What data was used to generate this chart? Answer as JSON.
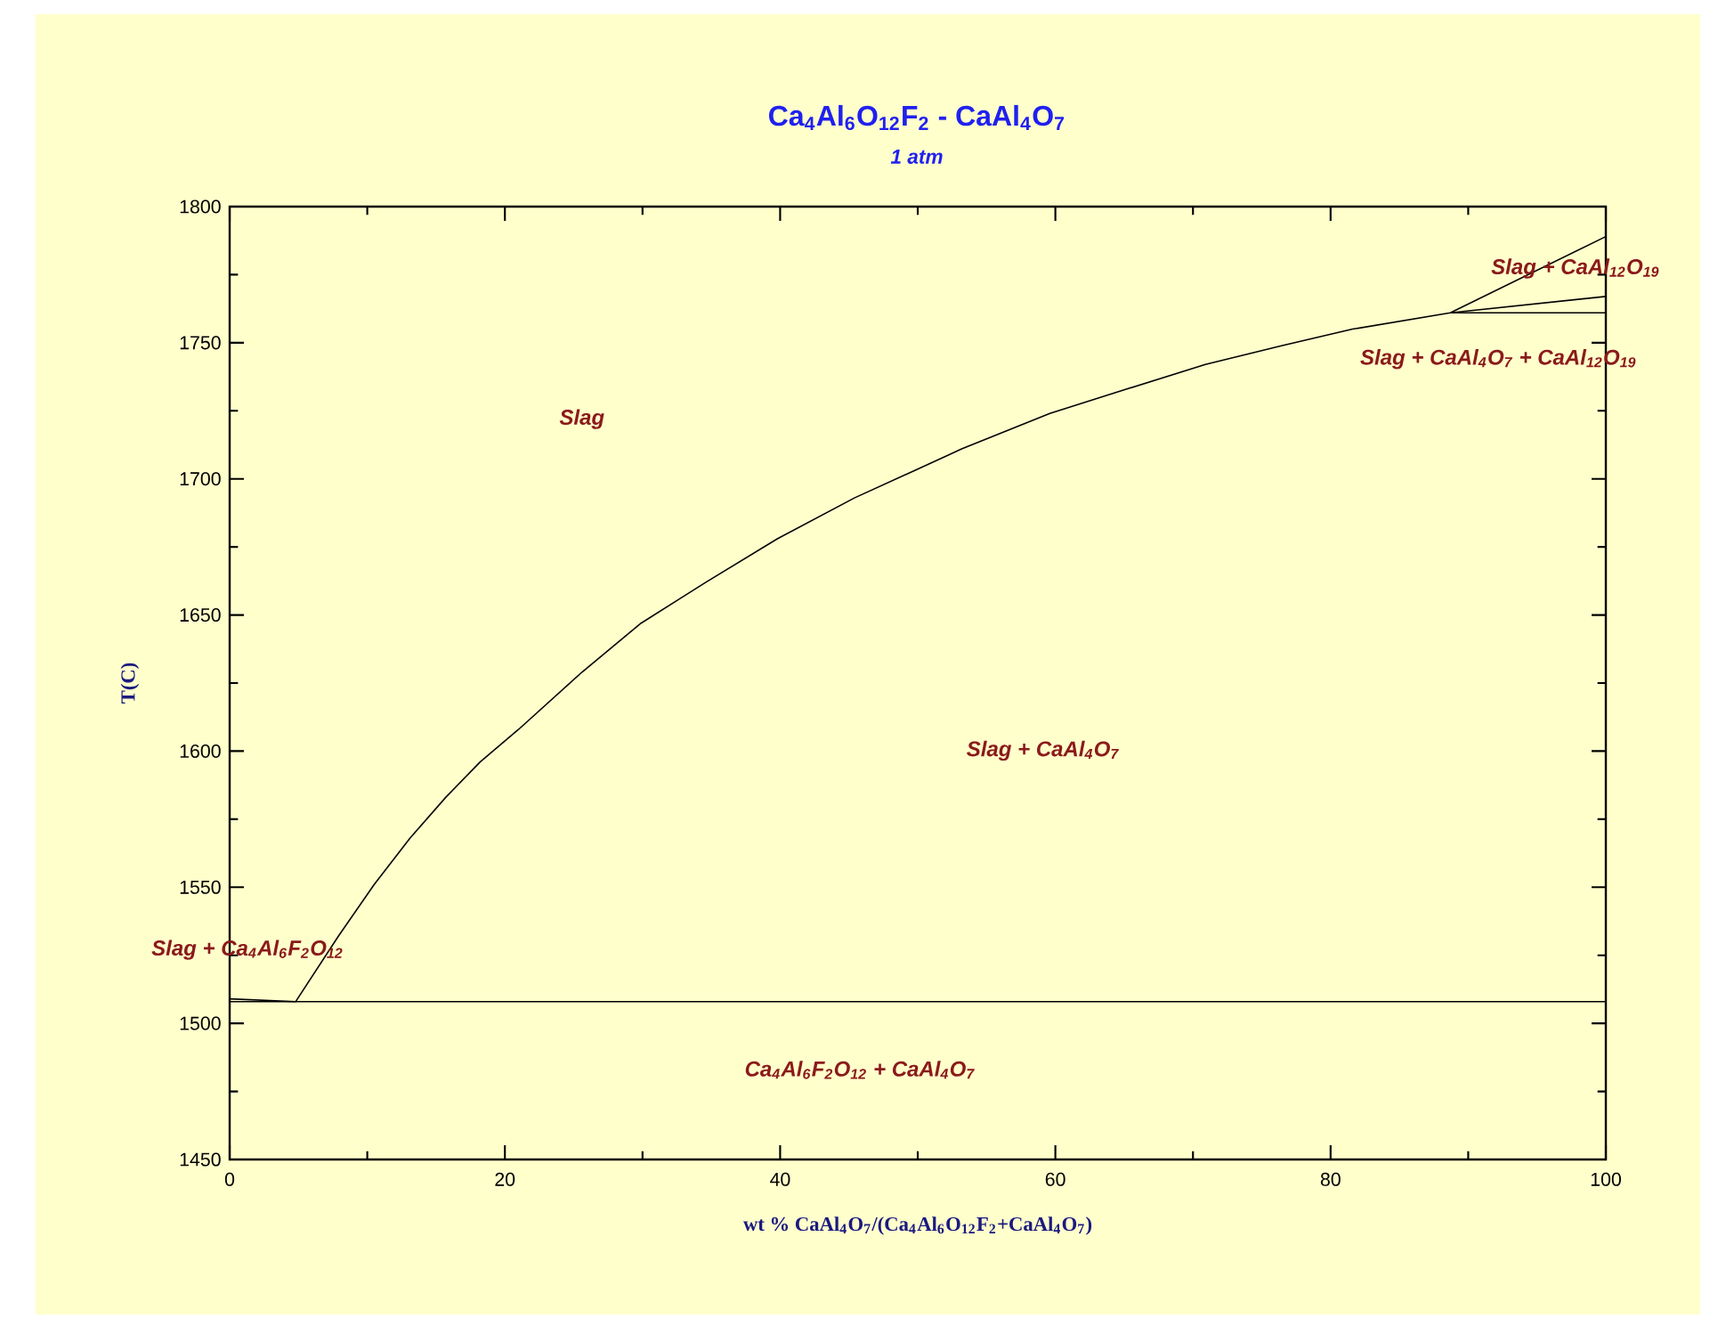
{
  "chart_data": {
    "type": "line",
    "title": "Ca$_{4}$Al$_{6}$O$_{12}$F$_{2}$ - CaAl$_{4}$O$_{7}$",
    "subtitle": "1 atm",
    "xlabel": "wt % CaAl$_{4}$O$_{7}$/(Ca$_{4}$Al$_{6}$O$_{12}$F$_{2}$+CaAl$_{4}$O$_{7}$)",
    "ylabel": "T(C)",
    "xlim": [
      0,
      100
    ],
    "ylim": [
      1450,
      1800
    ],
    "xticks": [
      0,
      {
        "value": 10,
        "label": null
      },
      20,
      {
        "value": 30,
        "label": null
      },
      40,
      {
        "value": 50,
        "label": null
      },
      60,
      {
        "value": 70,
        "label": null
      },
      80,
      {
        "value": 90,
        "label": null
      },
      100
    ],
    "yticks": [
      1450,
      {
        "value": 1475,
        "label": null
      },
      1500,
      {
        "value": 1525,
        "label": null
      },
      1550,
      {
        "value": 1575,
        "label": null
      },
      1600,
      {
        "value": 1625,
        "label": null
      },
      1650,
      {
        "value": 1675,
        "label": null
      },
      1700,
      {
        "value": 1725,
        "label": null
      },
      1750,
      {
        "value": 1775,
        "label": null
      },
      1800
    ],
    "series": [
      {
        "color": "#000000",
        "x": [
          0,
          4.8,
          7.9,
          10.5,
          13.1,
          15.7,
          18.2,
          21.0,
          25.6,
          29.9,
          34.6,
          39.8,
          45.4,
          50.6,
          53.2,
          59.6,
          65.2,
          70.9,
          76.5,
          81.6,
          88.7,
          100
        ],
        "values": [
          1509,
          1508,
          1532,
          1551,
          1568,
          1583,
          1596,
          1608,
          1629,
          1647,
          1662,
          1678,
          1693,
          1705,
          1711,
          1724,
          1733,
          1742,
          1749,
          1755,
          1761,
          1789
        ]
      },
      {
        "color": "#000000",
        "x": [
          88.7,
          100
        ],
        "values": [
          1761,
          1767
        ]
      },
      {
        "color": "#000000",
        "x": [
          88.7,
          100
        ],
        "values": [
          1761,
          1761
        ]
      },
      {
        "color": "#000000",
        "x": [
          0,
          100
        ],
        "values": [
          1508,
          1508
        ]
      }
    ],
    "annotations": [
      "Slag",
      "Slag + CaAl$_{4}$O$_{7}$",
      "Ca$_{4}$Al$_{6}$F$_{2}$O$_{12}$ + CaAl$_{4}$O$_{7}$",
      "Slag + CaAl$_{12}$O$_{19}$",
      "Slag + CaAl$_{4}$O$_{7}$ + CaAl$_{12}$O$_{19}$",
      "Slag + Ca$_{4}$Al$_{6}$F$_{2}$O$_{12}$"
    ]
  }
}
